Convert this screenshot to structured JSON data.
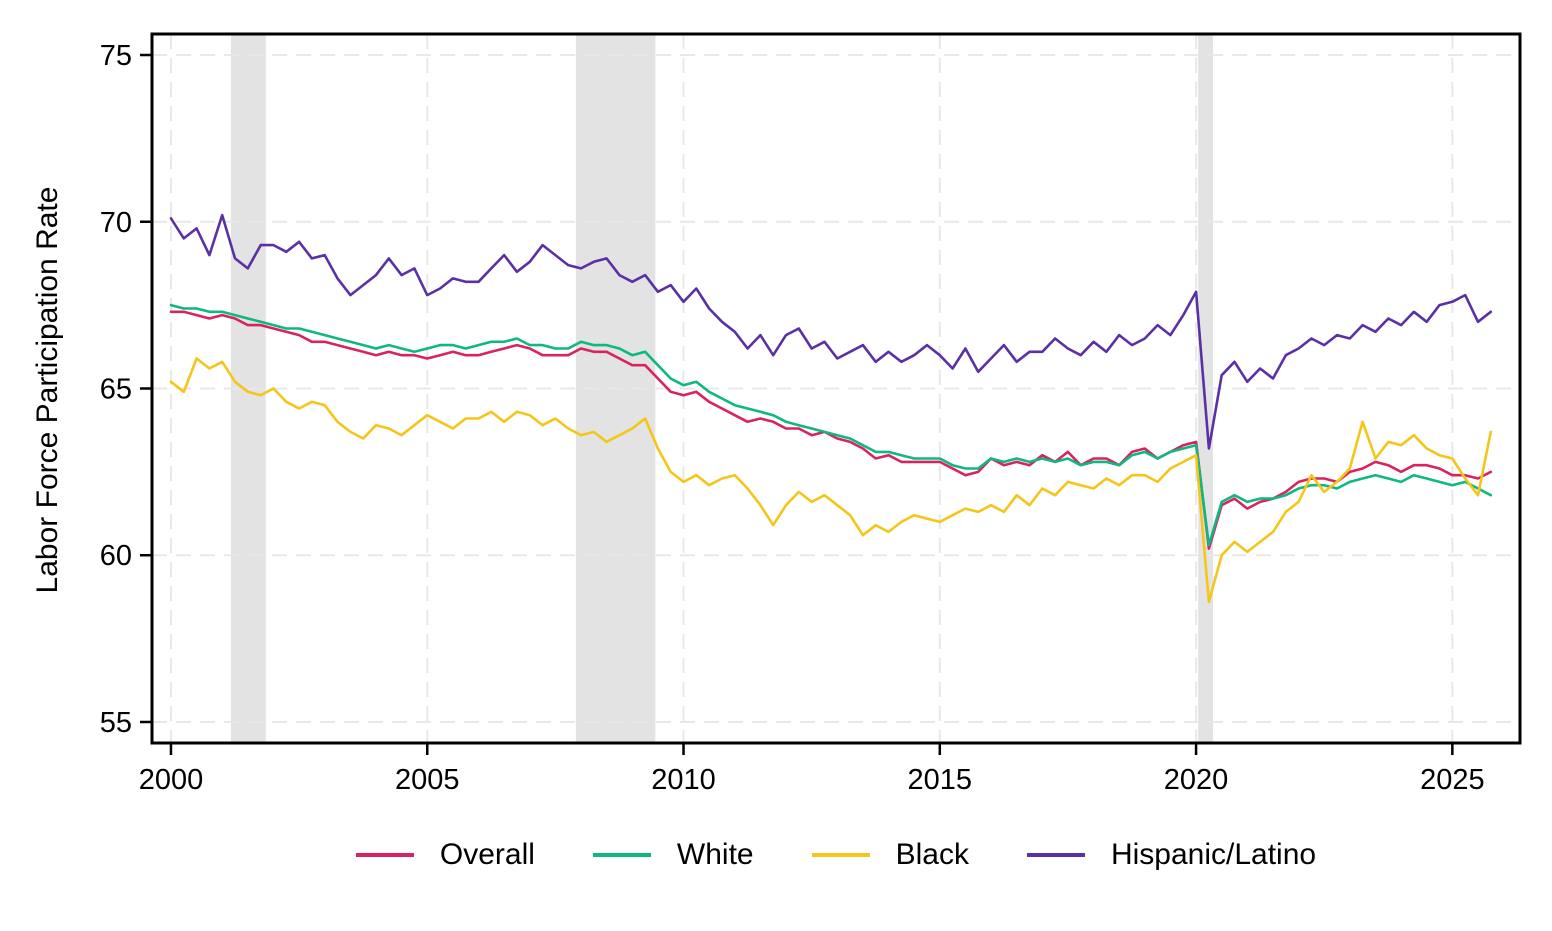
{
  "chart_data": {
    "type": "line",
    "title": "",
    "xlabel": "",
    "ylabel": "Labor Force Participation Rate",
    "x_ticks": [
      2000,
      2005,
      2010,
      2015,
      2020,
      2025
    ],
    "y_ticks": [
      55,
      60,
      65,
      70,
      75
    ],
    "xlim": [
      1999.63,
      2026.32
    ],
    "ylim": [
      54.37,
      75.63
    ],
    "grid": "dashed-both-axes",
    "legend_position": "bottom-center",
    "frame": "full-box",
    "x_start": 2000.0,
    "x_step": 0.25,
    "recession_bands": [
      {
        "from": 2001.17,
        "to": 2001.85
      },
      {
        "from": 2007.9,
        "to": 2009.45
      },
      {
        "from": 2020.04,
        "to": 2020.33
      }
    ],
    "series": [
      {
        "name": "Overall",
        "color": "#D8245E",
        "values": [
          67.3,
          67.3,
          67.2,
          67.1,
          67.2,
          67.1,
          66.9,
          66.9,
          66.8,
          66.7,
          66.6,
          66.4,
          66.4,
          66.3,
          66.2,
          66.1,
          66.0,
          66.1,
          66.0,
          66.0,
          65.9,
          66.0,
          66.1,
          66.0,
          66.0,
          66.1,
          66.2,
          66.3,
          66.2,
          66.0,
          66.0,
          66.0,
          66.2,
          66.1,
          66.1,
          65.9,
          65.7,
          65.7,
          65.3,
          64.9,
          64.8,
          64.9,
          64.6,
          64.4,
          64.2,
          64.0,
          64.1,
          64.0,
          63.8,
          63.8,
          63.6,
          63.7,
          63.5,
          63.4,
          63.2,
          62.9,
          63.0,
          62.8,
          62.8,
          62.8,
          62.8,
          62.6,
          62.4,
          62.5,
          62.9,
          62.7,
          62.8,
          62.7,
          63.0,
          62.8,
          63.1,
          62.7,
          62.9,
          62.9,
          62.7,
          63.1,
          63.2,
          62.9,
          63.1,
          63.3,
          63.4,
          60.2,
          61.5,
          61.7,
          61.4,
          61.6,
          61.7,
          61.9,
          62.2,
          62.3,
          62.3,
          62.2,
          62.5,
          62.6,
          62.8,
          62.7,
          62.5,
          62.7,
          62.7,
          62.6,
          62.4,
          62.4,
          62.3,
          62.5
        ]
      },
      {
        "name": "White",
        "color": "#0EB87E",
        "values": [
          67.5,
          67.4,
          67.4,
          67.3,
          67.3,
          67.2,
          67.1,
          67.0,
          66.9,
          66.8,
          66.8,
          66.7,
          66.6,
          66.5,
          66.4,
          66.3,
          66.2,
          66.3,
          66.2,
          66.1,
          66.2,
          66.3,
          66.3,
          66.2,
          66.3,
          66.4,
          66.4,
          66.5,
          66.3,
          66.3,
          66.2,
          66.2,
          66.4,
          66.3,
          66.3,
          66.2,
          66.0,
          66.1,
          65.7,
          65.3,
          65.1,
          65.2,
          64.9,
          64.7,
          64.5,
          64.4,
          64.3,
          64.2,
          64.0,
          63.9,
          63.8,
          63.7,
          63.6,
          63.5,
          63.3,
          63.1,
          63.1,
          63.0,
          62.9,
          62.9,
          62.9,
          62.7,
          62.6,
          62.6,
          62.9,
          62.8,
          62.9,
          62.8,
          62.9,
          62.8,
          62.9,
          62.7,
          62.8,
          62.8,
          62.7,
          63.0,
          63.1,
          62.9,
          63.1,
          63.2,
          63.3,
          60.3,
          61.6,
          61.8,
          61.6,
          61.7,
          61.7,
          61.8,
          62.0,
          62.1,
          62.1,
          62.0,
          62.2,
          62.3,
          62.4,
          62.3,
          62.2,
          62.4,
          62.3,
          62.2,
          62.1,
          62.2,
          62.0,
          61.8
        ]
      },
      {
        "name": "Black",
        "color": "#F5C51A",
        "values": [
          65.2,
          64.9,
          65.9,
          65.6,
          65.8,
          65.2,
          64.9,
          64.8,
          65.0,
          64.6,
          64.4,
          64.6,
          64.5,
          64.0,
          63.7,
          63.5,
          63.9,
          63.8,
          63.6,
          63.9,
          64.2,
          64.0,
          63.8,
          64.1,
          64.1,
          64.3,
          64.0,
          64.3,
          64.2,
          63.9,
          64.1,
          63.8,
          63.6,
          63.7,
          63.4,
          63.6,
          63.8,
          64.1,
          63.2,
          62.5,
          62.2,
          62.4,
          62.1,
          62.3,
          62.4,
          62.0,
          61.5,
          60.9,
          61.5,
          61.9,
          61.6,
          61.8,
          61.5,
          61.2,
          60.6,
          60.9,
          60.7,
          61.0,
          61.2,
          61.1,
          61.0,
          61.2,
          61.4,
          61.3,
          61.5,
          61.3,
          61.8,
          61.5,
          62.0,
          61.8,
          62.2,
          62.1,
          62.0,
          62.3,
          62.1,
          62.4,
          62.4,
          62.2,
          62.6,
          62.8,
          63.0,
          58.6,
          60.0,
          60.4,
          60.1,
          60.4,
          60.7,
          61.3,
          61.6,
          62.4,
          61.9,
          62.2,
          62.6,
          64.0,
          62.9,
          63.4,
          63.3,
          63.6,
          63.2,
          63.0,
          62.9,
          62.3,
          61.8,
          63.7
        ]
      },
      {
        "name": "Hispanic/Latino",
        "color": "#5A31A5",
        "values": [
          70.1,
          69.5,
          69.8,
          69.0,
          70.2,
          68.9,
          68.6,
          69.3,
          69.3,
          69.1,
          69.4,
          68.9,
          69.0,
          68.3,
          67.8,
          68.1,
          68.4,
          68.9,
          68.4,
          68.6,
          67.8,
          68.0,
          68.3,
          68.2,
          68.2,
          68.6,
          69.0,
          68.5,
          68.8,
          69.3,
          69.0,
          68.7,
          68.6,
          68.8,
          68.9,
          68.4,
          68.2,
          68.4,
          67.9,
          68.1,
          67.6,
          68.0,
          67.4,
          67.0,
          66.7,
          66.2,
          66.6,
          66.0,
          66.6,
          66.8,
          66.2,
          66.4,
          65.9,
          66.1,
          66.3,
          65.8,
          66.1,
          65.8,
          66.0,
          66.3,
          66.0,
          65.6,
          66.2,
          65.5,
          65.9,
          66.3,
          65.8,
          66.1,
          66.1,
          66.5,
          66.2,
          66.0,
          66.4,
          66.1,
          66.6,
          66.3,
          66.5,
          66.9,
          66.6,
          67.2,
          67.9,
          63.2,
          65.4,
          65.8,
          65.2,
          65.6,
          65.3,
          66.0,
          66.2,
          66.5,
          66.3,
          66.6,
          66.5,
          66.9,
          66.7,
          67.1,
          66.9,
          67.3,
          67.0,
          67.5,
          67.6,
          67.8,
          67.0,
          67.3
        ]
      }
    ]
  },
  "style_colors": {
    "recession_band": "#E3E3E3",
    "gridline": "#E8E8E8",
    "frame": "#000000",
    "background": "#FFFFFF"
  }
}
